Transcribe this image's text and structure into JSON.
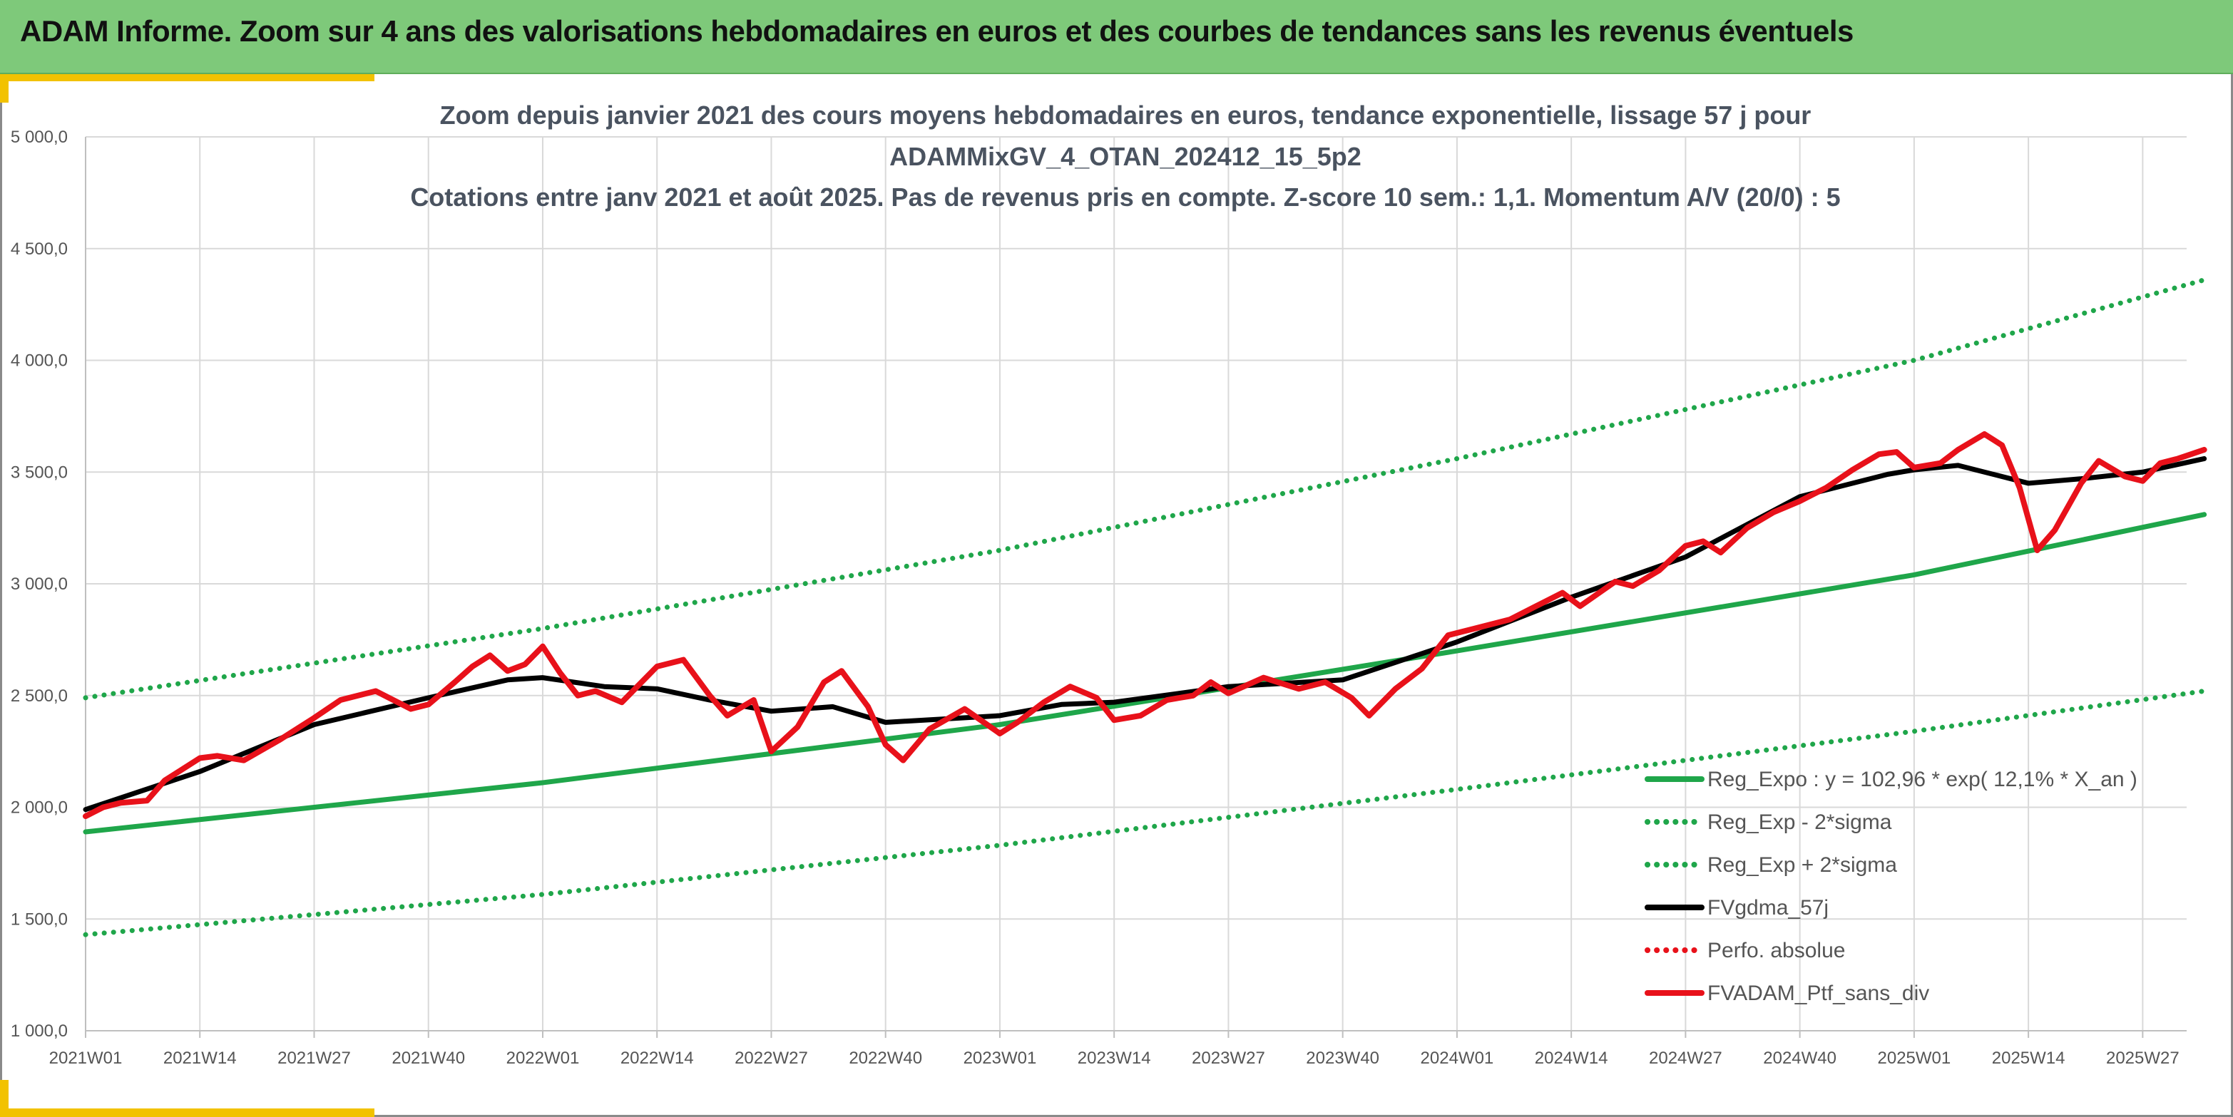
{
  "banner": {
    "title": "ADAM Informe. Zoom sur 4 ans des valorisations hebdomadaires en euros et des courbes de tendances sans les revenus éventuels"
  },
  "colors": {
    "banner_bg": "#7ec97a",
    "accent": "#f2c200",
    "trend_green": "#1fa64a",
    "band_green": "#1fa64a",
    "moving_avg": "#000000",
    "portfolio_red": "#e8111a"
  },
  "chart_data": {
    "type": "line",
    "title_lines": [
      "Zoom depuis janvier 2021 des cours moyens hebdomadaires en euros, tendance exponentielle, lissage 57 j pour",
      "ADAMMixGV_4_OTAN_202412_15_5p2",
      "Cotations entre janv 2021 et août 2025. Pas de revenus pris en compte. Z-score 10 sem.: 1,1. Momentum A/V (20/0) : 5"
    ],
    "xlabel": "",
    "ylabel": "",
    "ylim": [
      1000,
      5000
    ],
    "y_ticks": [
      "1 000,0",
      "1 500,0",
      "2 000,0",
      "2 500,0",
      "3 000,0",
      "3 500,0",
      "4 000,0",
      "4 500,0",
      "5 000,0"
    ],
    "x_ticks": [
      "2021W01",
      "2021W14",
      "2021W27",
      "2021W40",
      "2022W01",
      "2022W14",
      "2022W27",
      "2022W40",
      "2023W01",
      "2023W14",
      "2023W27",
      "2023W40",
      "2024W01",
      "2024W14",
      "2024W27",
      "2024W40",
      "2025W01",
      "2025W14",
      "2025W27"
    ],
    "x_start_week": "2021W01",
    "n_weeks": 240,
    "grid": true,
    "legend_position": "bottom-right",
    "series": [
      {
        "name": "Reg_Expo : y = 102,96 * exp( 12,1% *  X_an )",
        "style": "solid",
        "color": "#1fa64a",
        "points": [
          [
            "2021W01",
            1890
          ],
          [
            "2022W01",
            2110
          ],
          [
            "2023W01",
            2370
          ],
          [
            "2024W01",
            2700
          ],
          [
            "2025W01",
            3040
          ],
          [
            "2025W34",
            3310
          ]
        ]
      },
      {
        "name": "Reg_Exp - 2*sigma",
        "style": "dotted",
        "color": "#1fa64a",
        "points": [
          [
            "2021W01",
            1430
          ],
          [
            "2022W01",
            1610
          ],
          [
            "2023W01",
            1830
          ],
          [
            "2024W01",
            2080
          ],
          [
            "2025W01",
            2340
          ],
          [
            "2025W34",
            2520
          ]
        ]
      },
      {
        "name": "Reg_Exp + 2*sigma",
        "style": "dotted",
        "color": "#1fa64a",
        "points": [
          [
            "2021W01",
            2490
          ],
          [
            "2022W01",
            2800
          ],
          [
            "2023W01",
            3150
          ],
          [
            "2024W01",
            3560
          ],
          [
            "2025W01",
            4000
          ],
          [
            "2025W34",
            4360
          ]
        ]
      },
      {
        "name": "FVgdma_57j",
        "style": "solid",
        "color": "#000000",
        "points": [
          [
            "2021W01",
            1990
          ],
          [
            "2021W14",
            2160
          ],
          [
            "2021W27",
            2370
          ],
          [
            "2021W40",
            2490
          ],
          [
            "2021W49",
            2570
          ],
          [
            "2022W01",
            2580
          ],
          [
            "2022W08",
            2540
          ],
          [
            "2022W14",
            2530
          ],
          [
            "2022W20",
            2480
          ],
          [
            "2022W27",
            2430
          ],
          [
            "2022W34",
            2450
          ],
          [
            "2022W40",
            2380
          ],
          [
            "2023W01",
            2410
          ],
          [
            "2023W08",
            2460
          ],
          [
            "2023W14",
            2470
          ],
          [
            "2023W27",
            2540
          ],
          [
            "2023W40",
            2570
          ],
          [
            "2024W01",
            2740
          ],
          [
            "2024W14",
            2940
          ],
          [
            "2024W27",
            3120
          ],
          [
            "2024W40",
            3390
          ],
          [
            "2024W50",
            3490
          ],
          [
            "2025W01",
            3510
          ],
          [
            "2025W06",
            3530
          ],
          [
            "2025W10",
            3490
          ],
          [
            "2025W14",
            3450
          ],
          [
            "2025W20",
            3470
          ],
          [
            "2025W27",
            3500
          ],
          [
            "2025W34",
            3560
          ]
        ]
      },
      {
        "name": "Perfo. absolue",
        "style": "dotted",
        "color": "#e8111a",
        "points": []
      },
      {
        "name": "FVADAM_Ptf_sans_div",
        "style": "solid",
        "color": "#e8111a",
        "points": [
          [
            "2021W01",
            1960
          ],
          [
            "2021W03",
            2000
          ],
          [
            "2021W05",
            2020
          ],
          [
            "2021W08",
            2030
          ],
          [
            "2021W10",
            2120
          ],
          [
            "2021W14",
            2220
          ],
          [
            "2021W16",
            2230
          ],
          [
            "2021W19",
            2210
          ],
          [
            "2021W23",
            2300
          ],
          [
            "2021W27",
            2400
          ],
          [
            "2021W30",
            2480
          ],
          [
            "2021W34",
            2520
          ],
          [
            "2021W38",
            2440
          ],
          [
            "2021W40",
            2460
          ],
          [
            "2021W43",
            2560
          ],
          [
            "2021W45",
            2630
          ],
          [
            "2021W47",
            2680
          ],
          [
            "2021W49",
            2610
          ],
          [
            "2021W51",
            2640
          ],
          [
            "2022W01",
            2720
          ],
          [
            "2022W03",
            2600
          ],
          [
            "2022W05",
            2500
          ],
          [
            "2022W07",
            2520
          ],
          [
            "2022W10",
            2470
          ],
          [
            "2022W14",
            2630
          ],
          [
            "2022W17",
            2660
          ],
          [
            "2022W20",
            2500
          ],
          [
            "2022W22",
            2410
          ],
          [
            "2022W25",
            2480
          ],
          [
            "2022W27",
            2250
          ],
          [
            "2022W30",
            2360
          ],
          [
            "2022W33",
            2560
          ],
          [
            "2022W35",
            2610
          ],
          [
            "2022W38",
            2450
          ],
          [
            "2022W40",
            2280
          ],
          [
            "2022W42",
            2210
          ],
          [
            "2022W45",
            2350
          ],
          [
            "2022W49",
            2440
          ],
          [
            "2023W01",
            2330
          ],
          [
            "2023W03",
            2380
          ],
          [
            "2023W06",
            2470
          ],
          [
            "2023W09",
            2540
          ],
          [
            "2023W12",
            2490
          ],
          [
            "2023W14",
            2390
          ],
          [
            "2023W17",
            2410
          ],
          [
            "2023W20",
            2480
          ],
          [
            "2023W23",
            2500
          ],
          [
            "2023W25",
            2560
          ],
          [
            "2023W27",
            2510
          ],
          [
            "2023W31",
            2580
          ],
          [
            "2023W35",
            2530
          ],
          [
            "2023W38",
            2560
          ],
          [
            "2023W41",
            2490
          ],
          [
            "2023W43",
            2410
          ],
          [
            "2023W46",
            2530
          ],
          [
            "2023W49",
            2620
          ],
          [
            "2023W52",
            2770
          ],
          [
            "2024W03",
            2800
          ],
          [
            "2024W07",
            2840
          ],
          [
            "2024W10",
            2900
          ],
          [
            "2024W13",
            2960
          ],
          [
            "2024W15",
            2900
          ],
          [
            "2024W19",
            3010
          ],
          [
            "2024W21",
            2990
          ],
          [
            "2024W24",
            3060
          ],
          [
            "2024W27",
            3170
          ],
          [
            "2024W29",
            3190
          ],
          [
            "2024W31",
            3140
          ],
          [
            "2024W34",
            3250
          ],
          [
            "2024W37",
            3320
          ],
          [
            "2024W40",
            3370
          ],
          [
            "2024W43",
            3430
          ],
          [
            "2024W46",
            3510
          ],
          [
            "2024W49",
            3580
          ],
          [
            "2024W51",
            3590
          ],
          [
            "2025W01",
            3520
          ],
          [
            "2025W04",
            3540
          ],
          [
            "2025W06",
            3600
          ],
          [
            "2025W09",
            3670
          ],
          [
            "2025W11",
            3620
          ],
          [
            "2025W13",
            3430
          ],
          [
            "2025W15",
            3150
          ],
          [
            "2025W17",
            3240
          ],
          [
            "2025W20",
            3450
          ],
          [
            "2025W22",
            3550
          ],
          [
            "2025W25",
            3480
          ],
          [
            "2025W27",
            3460
          ],
          [
            "2025W29",
            3540
          ],
          [
            "2025W31",
            3560
          ],
          [
            "2025W34",
            3600
          ]
        ]
      }
    ]
  }
}
